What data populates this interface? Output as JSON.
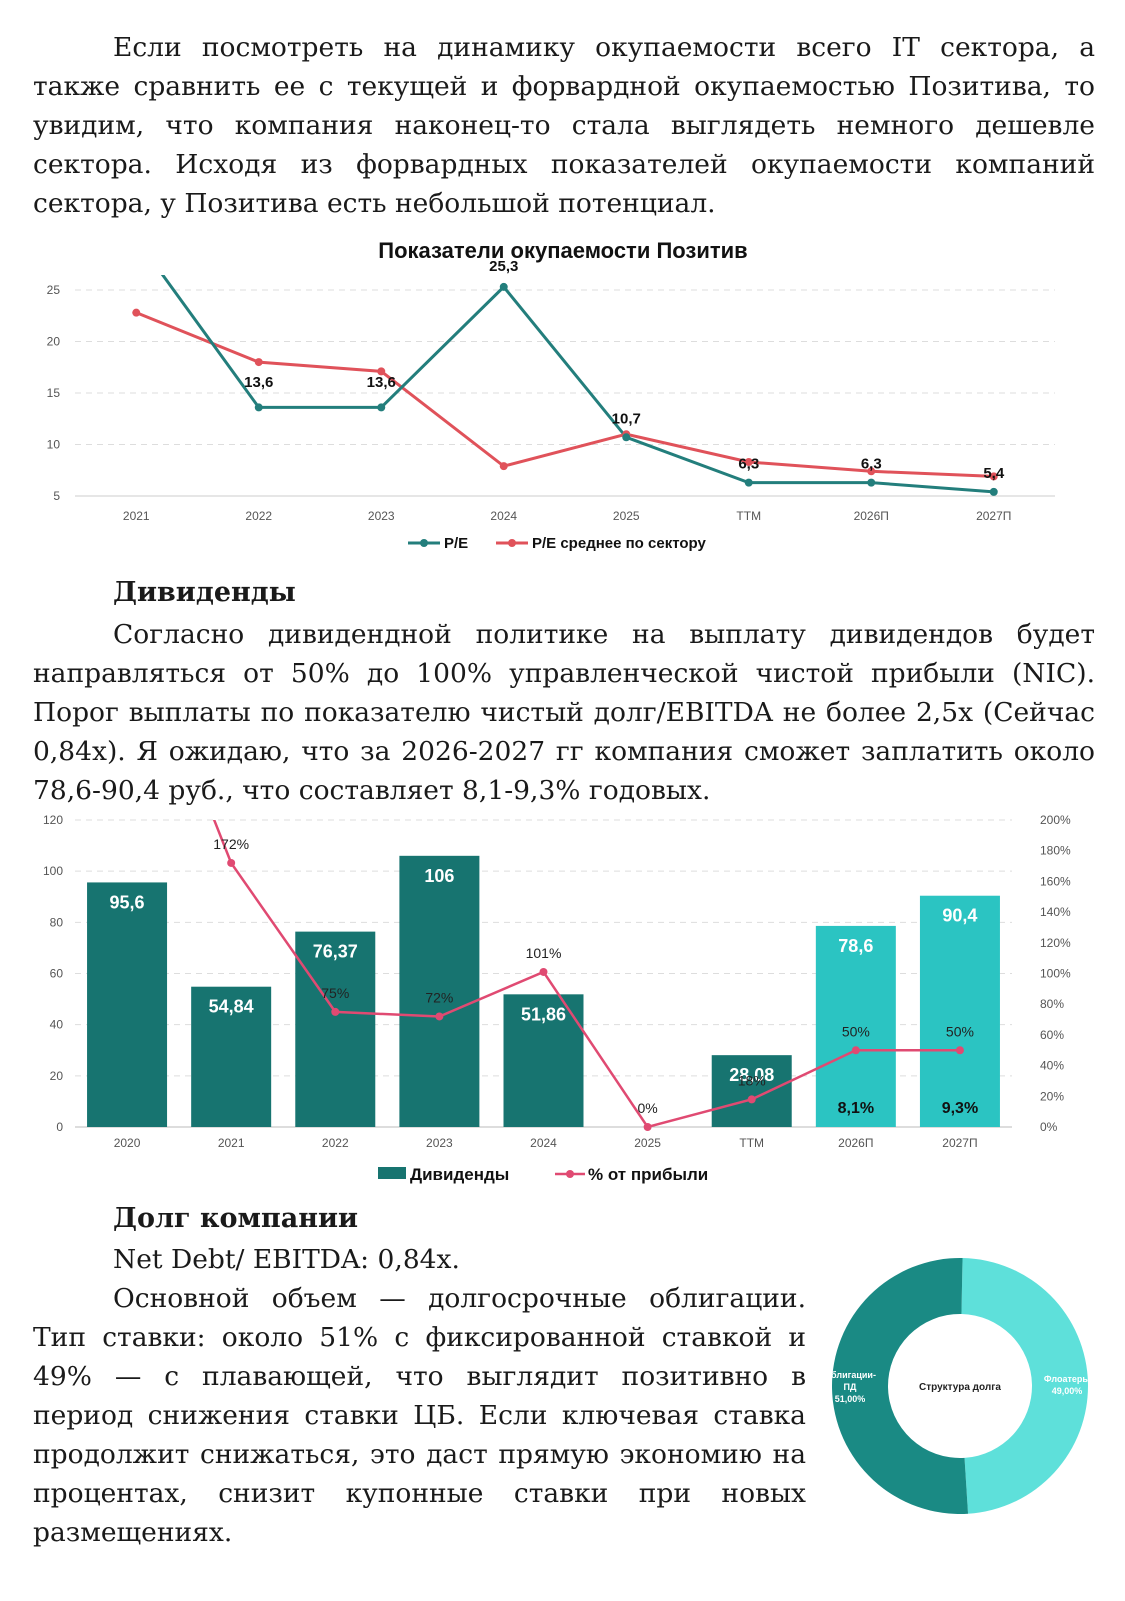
{
  "intro_paragraph": "Если посмотреть на динамику окупаемости всего IT сектора, а также сравнить ее с текущей и форвардной окупаемостью Позитива, то увидим, что компания наконец-то стала выглядеть немного дешевле сектора. Исходя из форвардных показателей окупаемости компаний сектора, у Позитива есть небольшой потенциал.",
  "dividends_heading": "Дивиденды",
  "dividends_paragraph": "Согласно дивидендной политике на выплату дивидендов будет направляться от 50% до 100% управленческой чистой прибыли (NIC). Порог выплаты по показателю чистый долг/EBITDA не более 2,5х (Сейчас 0,84х). Я ожидаю, что за 2026-2027 гг компания сможет заплатить около 78,6-90,4 руб., что составляет 8,1-9,3% годовых.",
  "debt_heading": "Долг компании",
  "debt_line": "Net Debt/ EBITDA: 0,84x.",
  "debt_paragraph": "Основной объем — долгосрочные облигации. Тип ставки: около 51% с фиксированной ставкой и 49% — с плавающей, что выглядит позитивно в период снижения ставки ЦБ. Если ключевая ставка продолжит снижаться, это даст прямую экономию на процентах, снизит купонные ставки при новых размещениях.",
  "colors": {
    "pe": "#237e7c",
    "sector": "#e0525a",
    "bar_actual": "#177470",
    "bar_forecast": "#2bc4c2",
    "payout": "#e04a72",
    "donut_bonds": "#1a8a84",
    "donut_floaters": "#5ee0da"
  },
  "chart_data": [
    {
      "type": "line",
      "title": "Показатели окупаемости Позитив",
      "categories": [
        "2021",
        "2022",
        "2023",
        "2024",
        "2025",
        "ТТМ",
        "2026П",
        "2027П"
      ],
      "yticks": [
        "25",
        "20",
        "15",
        "10",
        "5"
      ],
      "ylim": [
        5,
        25
      ],
      "series": [
        {
          "name": "P/E",
          "values": [
            30,
            13.6,
            13.6,
            25.3,
            10.7,
            6.3,
            6.3,
            5.4
          ],
          "labels": [
            "",
            "13,6",
            "13,6",
            "25,3",
            "10,7",
            "6,3",
            "6,3",
            "5,4"
          ]
        },
        {
          "name": "P/E среднее по сектору",
          "values": [
            22.8,
            18,
            17.1,
            7.9,
            11,
            8.3,
            7.4,
            6.9
          ]
        }
      ],
      "grid": true,
      "legend": "bottom"
    },
    {
      "type": "bar",
      "categories": [
        "2020",
        "2021",
        "2022",
        "2023",
        "2024",
        "2025",
        "ТТМ",
        "2026П",
        "2027П"
      ],
      "yticks_left": [
        "120",
        "100",
        "80",
        "60",
        "40",
        "20",
        "0"
      ],
      "yticks_right": [
        "200%",
        "180%",
        "160%",
        "140%",
        "120%",
        "100%",
        "80%",
        "60%",
        "40%",
        "20%",
        "0%"
      ],
      "ylim": [
        0,
        120
      ],
      "ylim_right": [
        0,
        200
      ],
      "series": [
        {
          "name": "Дивиденды",
          "values": [
            95.6,
            54.84,
            76.37,
            106,
            51.86,
            0,
            28.08,
            78.6,
            90.4
          ],
          "labels": [
            "95,6",
            "54,84",
            "76,37",
            "106",
            "51,86",
            "",
            "28,08",
            "78,6",
            "90,4"
          ],
          "yield_labels": [
            "",
            "",
            "",
            "",
            "",
            "",
            "",
            "8,1%",
            "9,3%"
          ]
        },
        {
          "name": "% от прибыли",
          "values": [
            null,
            172,
            75,
            72,
            101,
            0,
            18,
            50,
            50
          ],
          "labels": [
            "",
            "172%",
            "75%",
            "72%",
            "101%",
            "0%",
            "18%",
            "50%",
            "50%"
          ]
        }
      ],
      "legend": "bottom"
    },
    {
      "type": "pie",
      "center_label": "Структура долга",
      "slices": [
        {
          "name": "Облигации-ПД",
          "value": 51.0,
          "label": "51,00%"
        },
        {
          "name": "Флоатеры",
          "value": 49.0,
          "label": "49,00%"
        }
      ]
    }
  ]
}
